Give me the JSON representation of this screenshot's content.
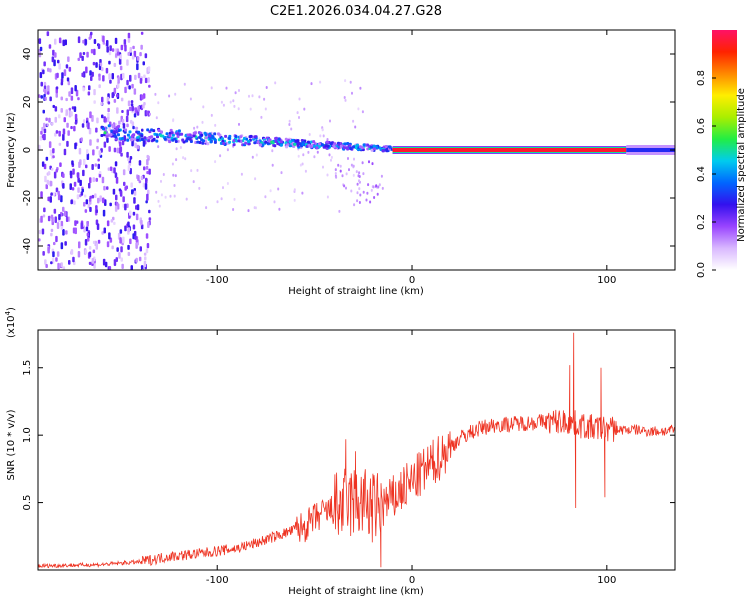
{
  "title": "C2E1.2026.034.04.27.G28",
  "colors": {
    "snr_line": "#ee3322",
    "axis": "#000000",
    "colormap": [
      "#ffffff",
      "#d9b8ff",
      "#9944ff",
      "#3311ee",
      "#0066ff",
      "#00ccee",
      "#22ee44",
      "#aaee00",
      "#ffee00",
      "#ff8800",
      "#ff2200",
      "#ff1166"
    ]
  },
  "colorbar": {
    "label": "Normalized spectral amplitude",
    "ticks": [
      "0.0",
      "0.2",
      "0.4",
      "0.6",
      "0.8"
    ],
    "tick_values": [
      0.0,
      0.2,
      0.4,
      0.6,
      0.8
    ],
    "range": [
      0,
      1
    ]
  },
  "chart_data": [
    {
      "type": "heatmap",
      "title": "C2E1.2026.034.04.27.G28",
      "xlabel": "Height of straight line (km)",
      "ylabel": "Frequency (Hz)",
      "xlim": [
        -192,
        135
      ],
      "ylim": [
        -50,
        50
      ],
      "xticks": [
        -100,
        0,
        100
      ],
      "xtick_labels": [
        "-100",
        "0",
        "100"
      ],
      "yticks": [
        -40,
        -20,
        0,
        20,
        40
      ],
      "ytick_labels": [
        "-40",
        "-20",
        "0",
        "20",
        "40"
      ],
      "colorbar_label": "Normalized spectral amplitude",
      "features": [
        {
          "name": "noise region",
          "x_range": [
            -192,
            -135
          ],
          "freq_range": [
            -50,
            50
          ],
          "amplitude": 0.2
        },
        {
          "name": "signal streak",
          "x_start": -160,
          "x_end": -10,
          "freq_start": 8,
          "freq_end": 1,
          "amplitude": 0.45
        },
        {
          "name": "strong line",
          "x_range": [
            -10,
            110
          ],
          "freq": 0,
          "amplitude": 0.95
        },
        {
          "name": "tail",
          "x_range": [
            110,
            135
          ],
          "freq": 0,
          "amplitude": 0.3
        }
      ]
    },
    {
      "type": "line",
      "xlabel": "Height of straight line (km)",
      "ylabel": "SNR (10 * v/v)",
      "multiplier_label": "(x10",
      "multiplier_exp": "4",
      "multiplier_close": ")",
      "xlim": [
        -192,
        135
      ],
      "ylim": [
        0,
        1.78
      ],
      "xticks": [
        -100,
        0,
        100
      ],
      "xtick_labels": [
        "-100",
        "0",
        "100"
      ],
      "yticks": [
        0.5,
        1.0,
        1.5
      ],
      "ytick_labels": [
        "0.5",
        "1.0",
        "1.5"
      ],
      "series": [
        {
          "name": "SNR",
          "x": [
            -192,
            -160,
            -140,
            -125,
            -110,
            -100,
            -90,
            -80,
            -70,
            -60,
            -55,
            -50,
            -45,
            -40,
            -35,
            -30,
            -25,
            -20,
            -15,
            -10,
            -5,
            0,
            5,
            10,
            15,
            20,
            25,
            30,
            35,
            40,
            45,
            50,
            55,
            60,
            65,
            70,
            75,
            80,
            85,
            90,
            95,
            100,
            105,
            110,
            115,
            120,
            125,
            130,
            135
          ],
          "y": [
            0.03,
            0.04,
            0.06,
            0.1,
            0.12,
            0.14,
            0.16,
            0.2,
            0.25,
            0.3,
            0.32,
            0.38,
            0.42,
            0.45,
            0.48,
            0.5,
            0.5,
            0.45,
            0.48,
            0.52,
            0.6,
            0.65,
            0.72,
            0.78,
            0.85,
            0.92,
            0.98,
            1.02,
            1.05,
            1.07,
            1.08,
            1.08,
            1.09,
            1.09,
            1.1,
            1.1,
            1.1,
            1.1,
            1.08,
            1.06,
            1.05,
            1.05,
            1.04,
            1.04,
            1.04,
            1.03,
            1.03,
            1.03,
            1.04
          ],
          "spikes": [
            {
              "x": -34,
              "y": 0.97
            },
            {
              "x": -29,
              "y": 0.88
            },
            {
              "x": -16,
              "y": 0.02
            },
            {
              "x": 81,
              "y": 1.52
            },
            {
              "x": 83,
              "y": 1.76
            },
            {
              "x": 84,
              "y": 0.46
            },
            {
              "x": 97,
              "y": 1.5
            },
            {
              "x": 99,
              "y": 0.54
            }
          ]
        }
      ]
    }
  ]
}
